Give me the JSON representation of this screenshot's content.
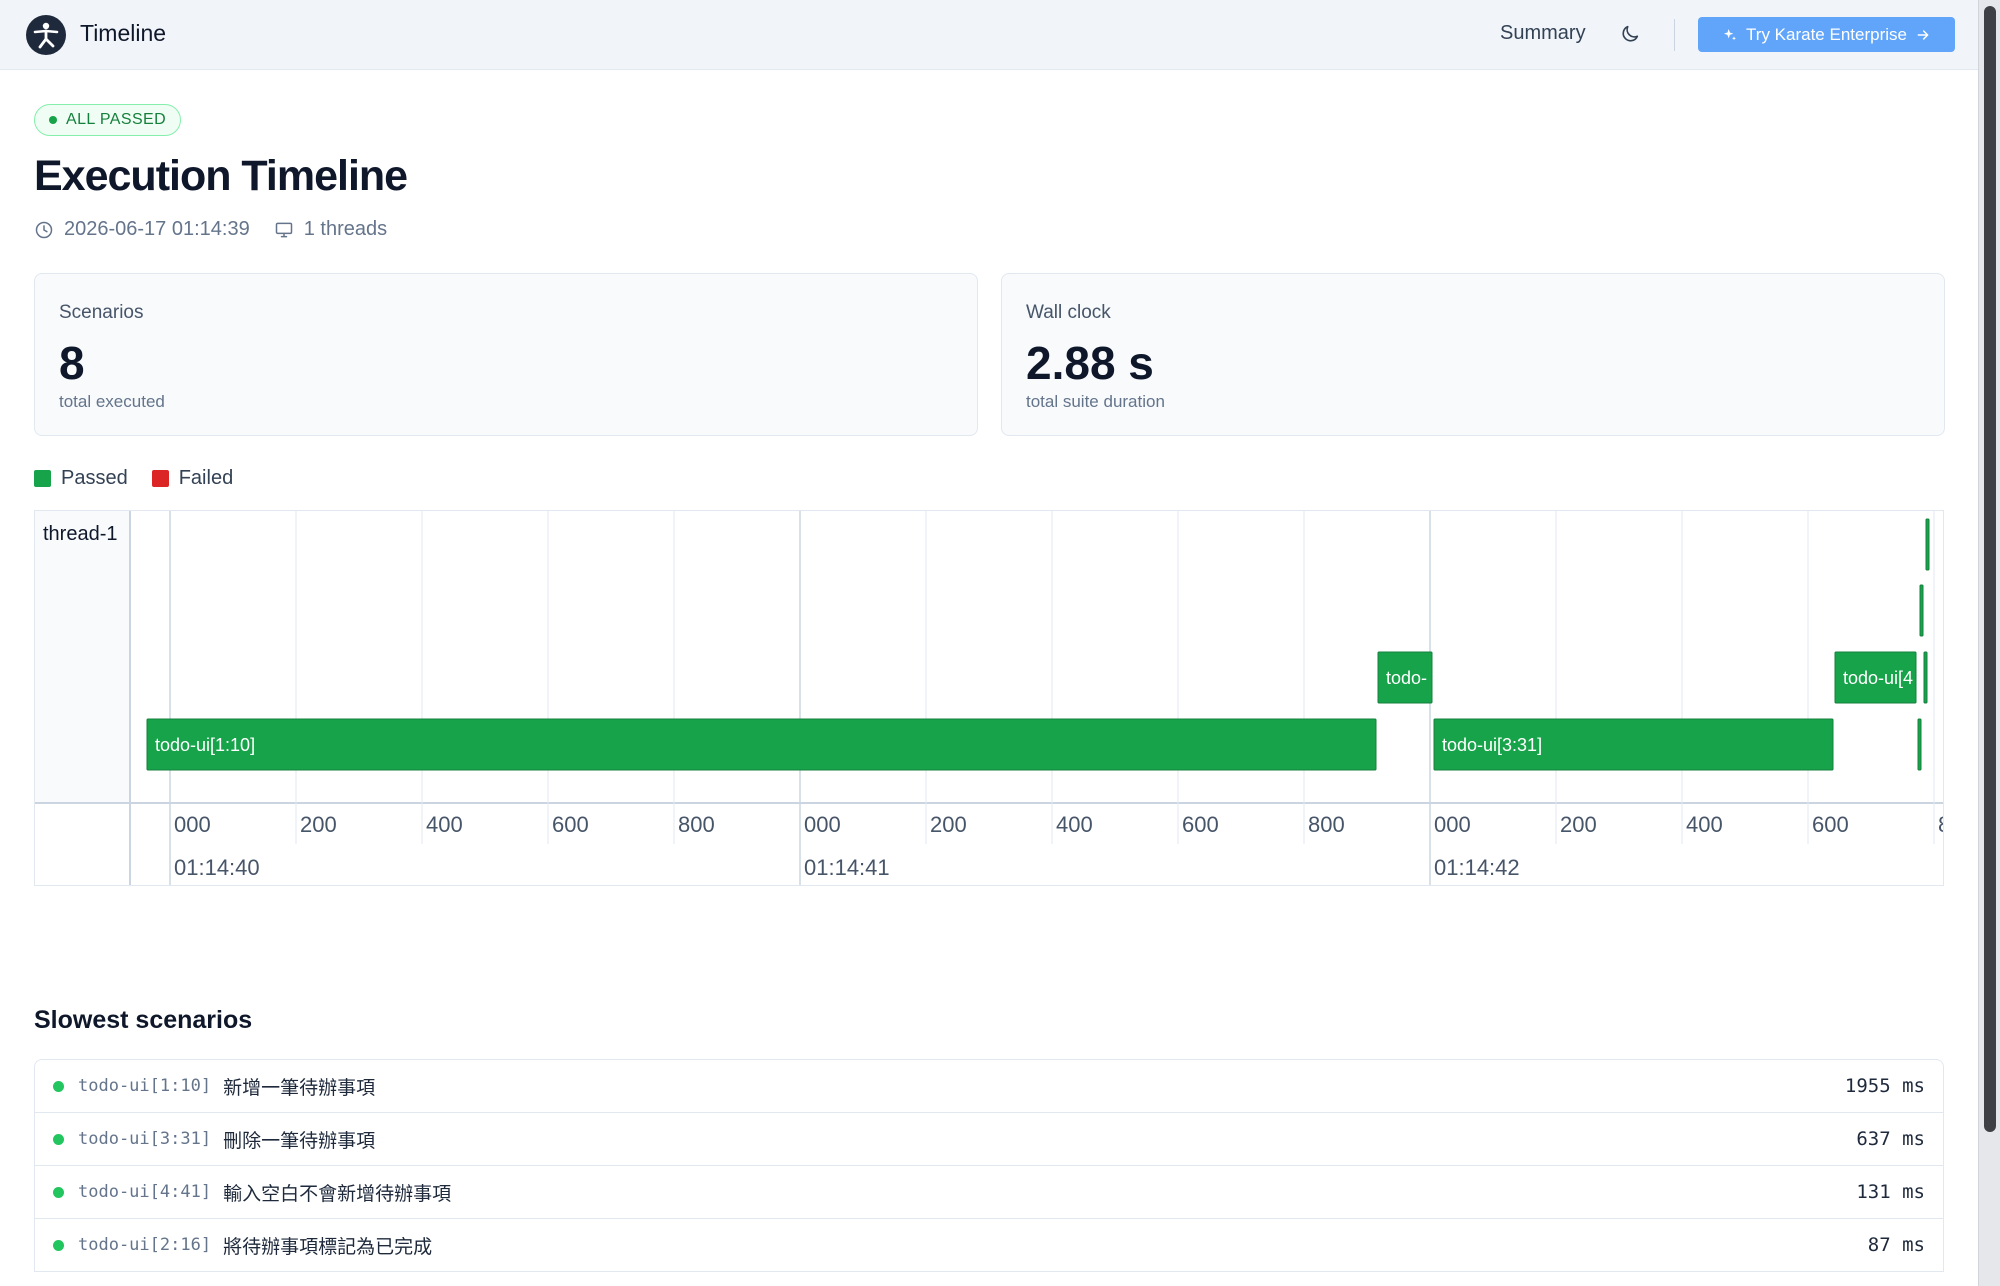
{
  "header": {
    "title": "Timeline",
    "nav_summary": "Summary",
    "cta_label": "Try Karate Enterprise",
    "logo_icon": "karate-person-icon",
    "theme_icon": "moon-icon"
  },
  "status": {
    "label": "ALL PASSED",
    "color": "#16a34a"
  },
  "page": {
    "title": "Execution Timeline",
    "timestamp": "2026-06-17 01:14:39",
    "threads": "1 threads"
  },
  "stats": {
    "scenarios": {
      "label": "Scenarios",
      "value": "8",
      "sub": "total executed"
    },
    "wallclock": {
      "label": "Wall clock",
      "value": "2.88 s",
      "sub": "total suite duration"
    }
  },
  "legend": {
    "passed": {
      "label": "Passed",
      "color": "#16a34a"
    },
    "failed": {
      "label": "Failed",
      "color": "#dc2626"
    }
  },
  "timeline": {
    "lane": "thread-1",
    "ticks": [
      "000",
      "200",
      "400",
      "600",
      "800",
      "000",
      "200",
      "400",
      "600",
      "800",
      "000",
      "200",
      "400",
      "600",
      "8"
    ],
    "second_labels": [
      "01:14:40",
      "01:14:41",
      "01:14:42"
    ],
    "bars": [
      {
        "label": "todo-ui[1:10]",
        "status": "passed"
      },
      {
        "label": "todo-",
        "status": "passed"
      },
      {
        "label": "todo-ui[3:31]",
        "status": "passed"
      },
      {
        "label": "todo-ui[4",
        "status": "passed"
      },
      {
        "label": "",
        "status": "passed"
      },
      {
        "label": "",
        "status": "passed"
      },
      {
        "label": "",
        "status": "passed"
      },
      {
        "label": "",
        "status": "passed"
      }
    ]
  },
  "slowest": {
    "title": "Slowest scenarios",
    "rows": [
      {
        "id": "todo-ui[1:10]",
        "name": "新增一筆待辦事項",
        "duration": "1955 ms"
      },
      {
        "id": "todo-ui[3:31]",
        "name": "刪除一筆待辦事項",
        "duration": "637 ms"
      },
      {
        "id": "todo-ui[4:41]",
        "name": "輸入空白不會新增待辦事項",
        "duration": "131 ms"
      },
      {
        "id": "todo-ui[2:16]",
        "name": "將待辦事項標記為已完成",
        "duration": "87 ms"
      }
    ]
  }
}
